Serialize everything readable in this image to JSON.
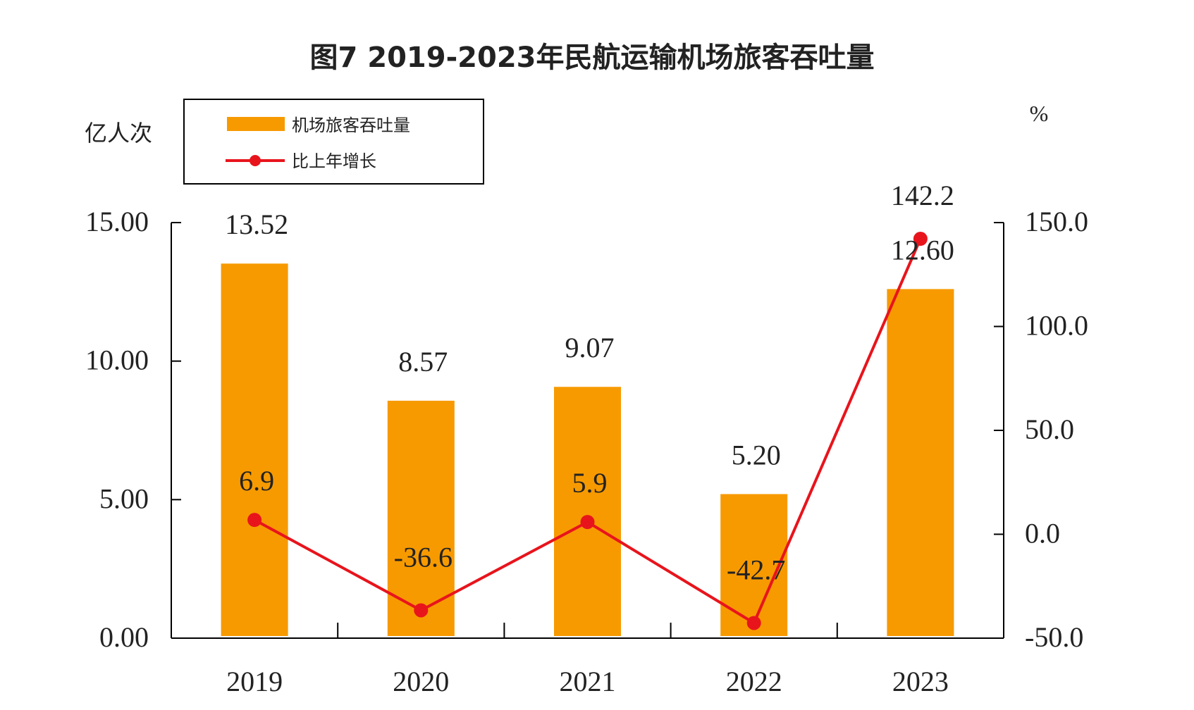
{
  "chart_data": {
    "type": "bar+line",
    "title": "图7 2019-2023年民航运输机场旅客吞吐量",
    "left_axis_unit": "亿人次",
    "right_axis_unit": "%",
    "categories": [
      "2019",
      "2020",
      "2021",
      "2022",
      "2023"
    ],
    "series": [
      {
        "name": "机场旅客吞吐量",
        "type": "bar",
        "axis": "left",
        "color": "#f79a00",
        "values": [
          13.52,
          8.57,
          9.07,
          5.2,
          12.6
        ],
        "labels": [
          "13.52",
          "8.57",
          "9.07",
          "5.20",
          "12.60"
        ]
      },
      {
        "name": "比上年增长",
        "type": "line",
        "axis": "right",
        "color": "#e8141c",
        "values": [
          6.9,
          -36.6,
          5.9,
          -42.7,
          142.2
        ],
        "labels": [
          "6.9",
          "-36.6",
          "5.9",
          "-42.7",
          "142.2"
        ]
      }
    ],
    "left_axis": {
      "range": [
        0,
        15
      ],
      "ticks": [
        "0.00",
        "5.00",
        "10.00",
        "15.00"
      ]
    },
    "right_axis": {
      "range": [
        -50,
        150
      ],
      "ticks": [
        "-50.0",
        "0.0",
        "50.0",
        "100.0",
        "150.0"
      ]
    },
    "grid": false,
    "legend": "top-left"
  }
}
